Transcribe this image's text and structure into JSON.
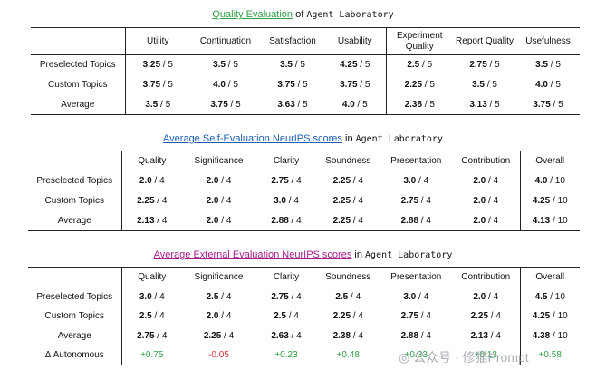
{
  "t1": {
    "title_hl": "Quality Evaluation",
    "title_of": " of ",
    "title_mono": "Agent Laboratory",
    "headers": [
      "Utility",
      "Continuation",
      "Satisfaction",
      "Usability",
      "Experiment Quality",
      "Report Quality",
      "Usefulness"
    ],
    "rows": [
      {
        "label": "Preselected Topics",
        "cells": [
          [
            "3.25",
            " / 5"
          ],
          [
            "3.5",
            " / 5"
          ],
          [
            "3.5",
            " / 5"
          ],
          [
            "4.25",
            " / 5"
          ],
          [
            "2.5",
            " / 5"
          ],
          [
            "2.75",
            " / 5"
          ],
          [
            "3.5",
            " / 5"
          ]
        ]
      },
      {
        "label": "Custom Topics",
        "cells": [
          [
            "3.75",
            " / 5"
          ],
          [
            "4.0",
            " / 5"
          ],
          [
            "3.75",
            " / 5"
          ],
          [
            "3.75",
            " / 5"
          ],
          [
            "2.25",
            " / 5"
          ],
          [
            "3.5",
            " / 5"
          ],
          [
            "4.0",
            " / 5"
          ]
        ]
      },
      {
        "label": "Average",
        "cells": [
          [
            "3.5",
            " / 5"
          ],
          [
            "3.75",
            " / 5"
          ],
          [
            "3.63",
            " / 5"
          ],
          [
            "4.0",
            " / 5"
          ],
          [
            "2.38",
            " / 5"
          ],
          [
            "3.13",
            " / 5"
          ],
          [
            "3.75",
            " / 5"
          ]
        ]
      }
    ]
  },
  "t2": {
    "title_hl": "Average Self-Evaluation NeurIPS scores",
    "title_of": " in ",
    "title_mono": "Agent Laboratory",
    "headers": [
      "Quality",
      "Significance",
      "Clarity",
      "Soundness",
      "Presentation",
      "Contribution",
      "Overall"
    ],
    "rows": [
      {
        "label": "Preselected Topics",
        "cells": [
          [
            "2.0",
            " / 4"
          ],
          [
            "2.0",
            " / 4"
          ],
          [
            "2.75",
            " / 4"
          ],
          [
            "2.25",
            " / 4"
          ],
          [
            "3.0",
            " / 4"
          ],
          [
            "2.0",
            " / 4"
          ],
          [
            "4.0",
            " / 10"
          ]
        ]
      },
      {
        "label": "Custom Topics",
        "cells": [
          [
            "2.25",
            " / 4"
          ],
          [
            "2.0",
            " / 4"
          ],
          [
            "3.0",
            " / 4"
          ],
          [
            "2.25",
            " / 4"
          ],
          [
            "2.75",
            " / 4"
          ],
          [
            "2.0",
            " / 4"
          ],
          [
            "4.25",
            " / 10"
          ]
        ]
      },
      {
        "label": "Average",
        "cells": [
          [
            "2.13",
            " / 4"
          ],
          [
            "2.0",
            " / 4"
          ],
          [
            "2.88",
            " / 4"
          ],
          [
            "2.25",
            " / 4"
          ],
          [
            "2.88",
            " / 4"
          ],
          [
            "2.0",
            " / 4"
          ],
          [
            "4.13",
            " / 10"
          ]
        ]
      }
    ]
  },
  "t3": {
    "title_hl": "Average External Evaluation NeurIPS scores",
    "title_of": " in ",
    "title_mono": "Agent Laboratory",
    "headers": [
      "Quality",
      "Significance",
      "Clarity",
      "Soundness",
      "Presentation",
      "Contribution",
      "Overall"
    ],
    "rows": [
      {
        "label": "Preselected Topics",
        "cells": [
          [
            "3.0",
            " / 4"
          ],
          [
            "2.5",
            " / 4"
          ],
          [
            "2.75",
            " / 4"
          ],
          [
            "2.5",
            " / 4"
          ],
          [
            "3.0",
            " / 4"
          ],
          [
            "2.0",
            " / 4"
          ],
          [
            "4.5",
            " / 10"
          ]
        ]
      },
      {
        "label": "Custom Topics",
        "cells": [
          [
            "2.5",
            " / 4"
          ],
          [
            "2.0",
            " / 4"
          ],
          [
            "2.5",
            " / 4"
          ],
          [
            "2.25",
            " / 4"
          ],
          [
            "2.75",
            " / 4"
          ],
          [
            "2.25",
            " / 4"
          ],
          [
            "4.25",
            " / 10"
          ]
        ]
      },
      {
        "label": "Average",
        "cells": [
          [
            "2.75",
            " / 4"
          ],
          [
            "2.25",
            " / 4"
          ],
          [
            "2.63",
            " / 4"
          ],
          [
            "2.38",
            " / 4"
          ],
          [
            "2.88",
            " / 4"
          ],
          [
            "2.13",
            " / 4"
          ],
          [
            "4.38",
            " / 10"
          ]
        ]
      }
    ],
    "delta_label": "Δ Autonomous",
    "delta": [
      "+0.75",
      "-0.05",
      "+0.23",
      "+0.48",
      "+0.33",
      "+0.13",
      "+0.58"
    ]
  },
  "watermark": "公众号 · 修猫Prompt",
  "colors": {
    "green": "#2f9e44",
    "blue": "#1c5fb3",
    "purple": "#a61e8c",
    "neg": "#e03131"
  }
}
